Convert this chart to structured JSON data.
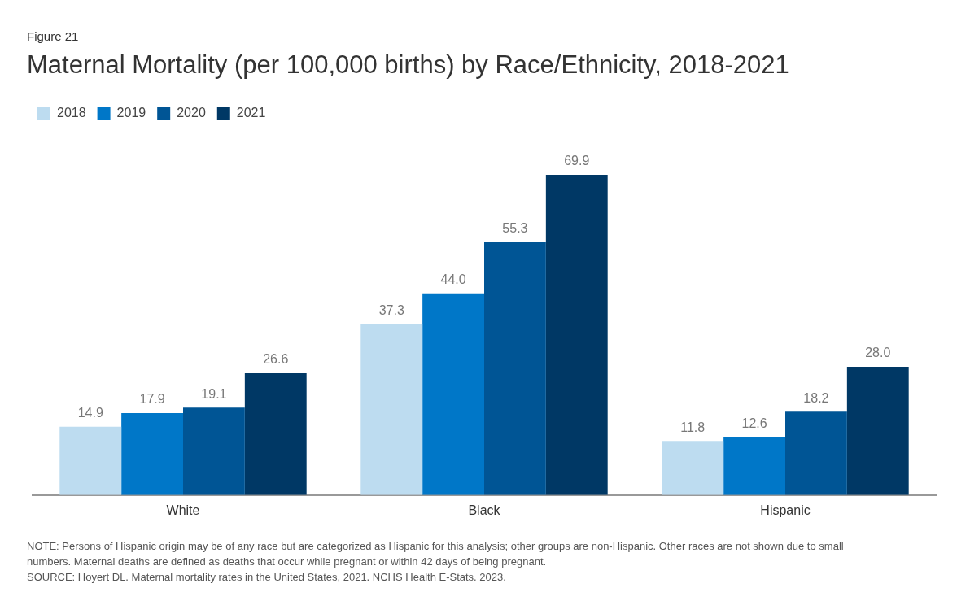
{
  "chart_data": {
    "type": "bar",
    "subtitle": "Figure 21",
    "title": "Maternal Mortality (per 100,000 births) by Race/Ethnicity, 2018-2021",
    "categories": [
      "White",
      "Black",
      "Hispanic"
    ],
    "series": [
      {
        "name": "2018",
        "color": "#bddcf0",
        "values": [
          14.9,
          37.3,
          11.8
        ],
        "value_labels": [
          "14.9",
          "37.3",
          "11.8"
        ]
      },
      {
        "name": "2019",
        "color": "#0077c8",
        "values": [
          17.9,
          44.0,
          12.6
        ],
        "value_labels": [
          "17.9",
          "44.0",
          "12.6"
        ]
      },
      {
        "name": "2020",
        "color": "#005595",
        "values": [
          19.1,
          55.3,
          18.2
        ],
        "value_labels": [
          "19.1",
          "55.3",
          "18.2"
        ]
      },
      {
        "name": "2021",
        "color": "#003865",
        "values": [
          26.6,
          69.9,
          28.0
        ],
        "value_labels": [
          "26.6",
          "69.9",
          "28.0"
        ]
      }
    ],
    "legend": "top left",
    "grid": false,
    "tick_labels": "x",
    "annotations": [
      "NOTE: Persons of Hispanic origin may be of any race but are categorized as Hispanic for this analysis; other groups are non-Hispanic. Other races are not shown due to small numbers. Maternal deaths are defined as deaths that occur while pregnant or within 42 days of being pregnant.",
      "SOURCE: Hoyert DL. Maternal mortality rates in the United States, 2021. NCHS Health E-Stats. 2023."
    ]
  }
}
